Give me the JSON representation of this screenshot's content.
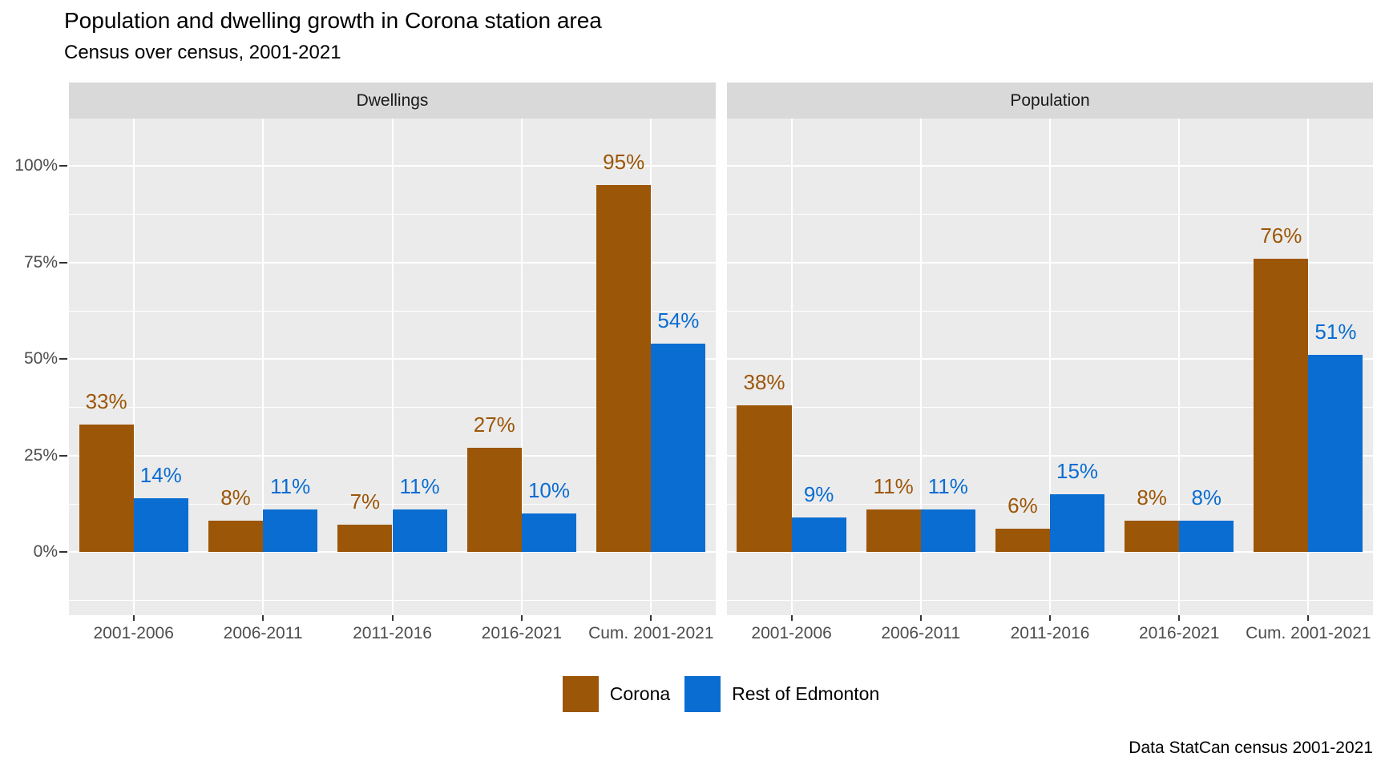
{
  "title": "Population and dwelling growth in Corona station area",
  "subtitle": "Census over census, 2001-2021",
  "caption": "Data StatCan census 2001-2021",
  "legend": {
    "position": "bottom",
    "items": [
      {
        "label": "Corona",
        "color": "#9C5608"
      },
      {
        "label": "Rest of Edmonton",
        "color": "#0A6DD2"
      }
    ]
  },
  "chart_data": {
    "type": "bar",
    "title": "Population and dwelling growth in Corona station area",
    "subtitle": "Census over census, 2001-2021",
    "caption": "Data StatCan census 2001-2021",
    "categories": [
      "2001-2006",
      "2006-2011",
      "2011-2016",
      "2016-2021",
      "Cum. 2001-2021"
    ],
    "value_suffix": "%",
    "bar_labels": true,
    "grid": true,
    "legend_position": "bottom",
    "facets": [
      {
        "label": "Dwellings",
        "series": [
          {
            "name": "Corona",
            "color": "#9C5608",
            "values": [
              33,
              8,
              7,
              27,
              95
            ]
          },
          {
            "name": "Rest of Edmonton",
            "color": "#0A6DD2",
            "values": [
              14,
              11,
              11,
              10,
              54
            ]
          }
        ]
      },
      {
        "label": "Population",
        "series": [
          {
            "name": "Corona",
            "color": "#9C5608",
            "values": [
              38,
              11,
              6,
              8,
              76
            ]
          },
          {
            "name": "Rest of Edmonton",
            "color": "#0A6DD2",
            "values": [
              9,
              11,
              15,
              8,
              51
            ]
          }
        ]
      }
    ],
    "y_axis": {
      "ticks": [
        {
          "label": "0%",
          "value": 0
        },
        {
          "label": "25%",
          "value": 25
        },
        {
          "label": "50%",
          "value": 50
        },
        {
          "label": "75%",
          "value": 75
        },
        {
          "label": "100%",
          "value": 100
        }
      ],
      "minor_tick_values": [
        -12.5,
        12.5,
        37.5,
        62.5,
        87.5,
        112.5
      ],
      "range": [
        -16.3,
        112.2
      ]
    },
    "style": {
      "panel_bg": "#EBEBEB",
      "strip_bg": "#D9D9D9",
      "grid_color": "#FFFFFF",
      "axis_text_color": "#4D4D4D",
      "tick_color": "#333333",
      "strip_text_color": "#1A1A1A"
    }
  }
}
